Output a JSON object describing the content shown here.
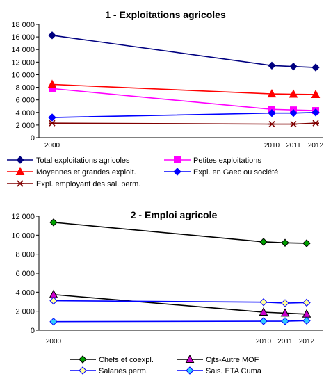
{
  "chart_data": [
    {
      "type": "line",
      "title": "1 - Exploitations agricoles",
      "x": [
        2000,
        2010,
        2011,
        2012
      ],
      "x_tick_labels": [
        "2000",
        "2010",
        "2011",
        "2012"
      ],
      "ylim": [
        0,
        18000
      ],
      "y_ticks": [
        "0",
        "2 000",
        "4 000",
        "6 000",
        "8 000",
        "10 000",
        "12 000",
        "14 000",
        "16 000",
        "18 000"
      ],
      "series": [
        {
          "name": "Total exploitations agricoles",
          "values": [
            16250,
            11450,
            11300,
            11150
          ],
          "color": "#000080",
          "marker": "diamond"
        },
        {
          "name": "Petites exploitations",
          "values": [
            7800,
            4500,
            4400,
            4300
          ],
          "color": "#ff00ff",
          "marker": "square"
        },
        {
          "name": "Moyennes et grandes exploit.",
          "values": [
            8450,
            6950,
            6900,
            6850
          ],
          "color": "#ff0000",
          "marker": "triangle"
        },
        {
          "name": "Expl. en Gaec ou société",
          "values": [
            3200,
            3900,
            3900,
            4000
          ],
          "color": "#0000ff",
          "marker": "diamond"
        },
        {
          "name": "Expl. employant des sal. perm.",
          "values": [
            2300,
            2150,
            2150,
            2300
          ],
          "color": "#800000",
          "marker": "star"
        }
      ]
    },
    {
      "type": "line",
      "title": "2 - Emploi agricole",
      "x": [
        2000,
        2010,
        2011,
        2012
      ],
      "x_tick_labels": [
        "2000",
        "2010",
        "2011",
        "2012"
      ],
      "ylim": [
        0,
        12000
      ],
      "y_ticks": [
        "0",
        "2 000",
        "4 000",
        "6 000",
        "8 000",
        "10 000",
        "12 000"
      ],
      "series": [
        {
          "name": "Chefs et coexpl.",
          "values": [
            11350,
            9300,
            9200,
            9150
          ],
          "color": "#000000",
          "fill": "#00a000",
          "marker": "diamond"
        },
        {
          "name": "Cjts-Autre MOF",
          "values": [
            3750,
            1900,
            1800,
            1700
          ],
          "color": "#000000",
          "fill": "#cc00cc",
          "marker": "triangle"
        },
        {
          "name": "Salariés perm.",
          "values": [
            3100,
            2950,
            2850,
            2900
          ],
          "color": "#0000ff",
          "fill": "#ffff99",
          "marker": "diamond"
        },
        {
          "name": "Sais. ETA Cuma",
          "values": [
            900,
            950,
            950,
            1000
          ],
          "color": "#0000ff",
          "fill": "#33ccff",
          "marker": "diamond"
        }
      ]
    }
  ]
}
